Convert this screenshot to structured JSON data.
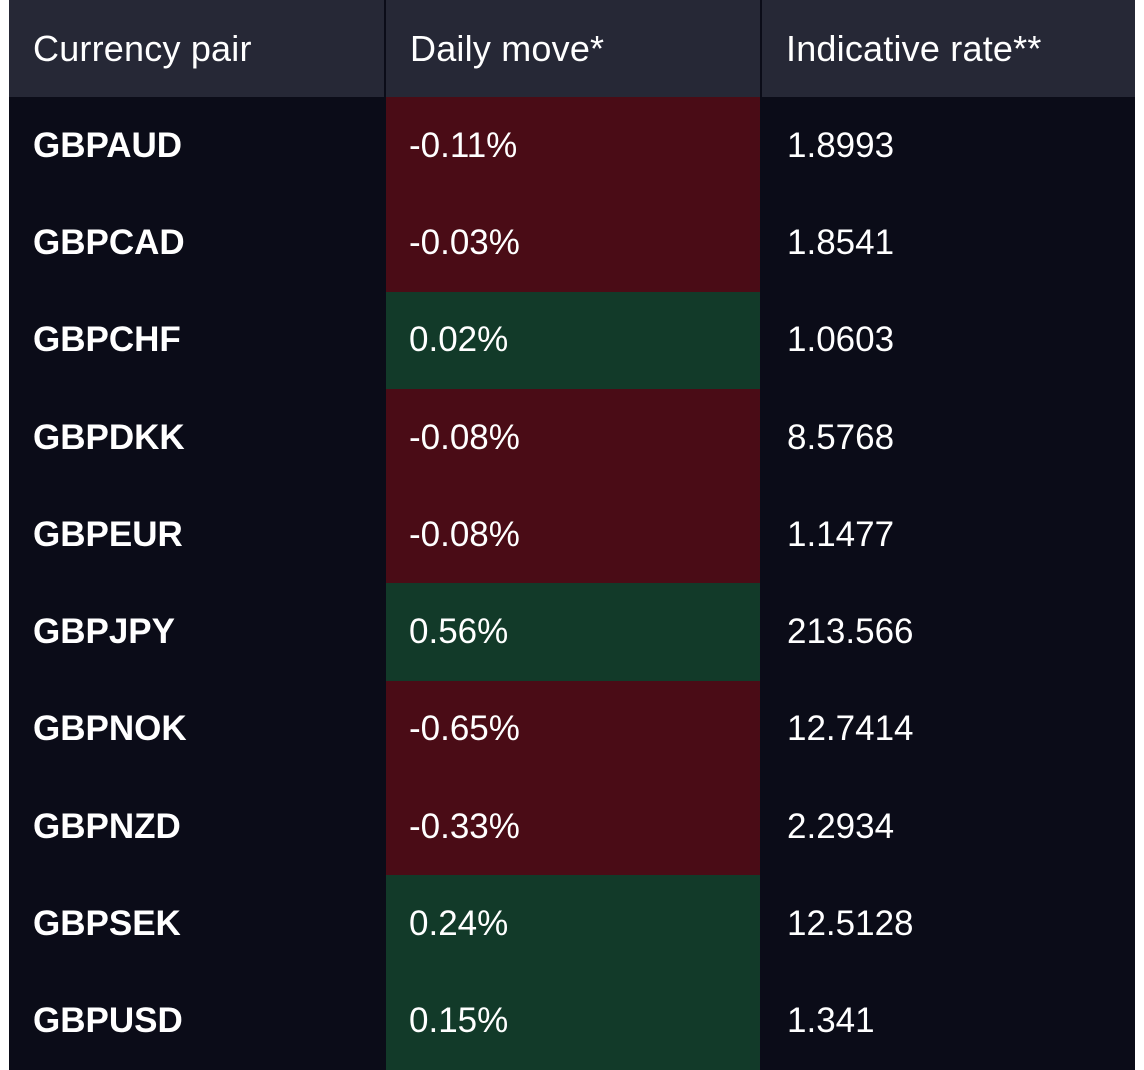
{
  "table": {
    "headers": [
      "Currency pair",
      "Daily move*",
      "Indicative rate**"
    ],
    "colors": {
      "background": "#0b0c18",
      "header_background": "#262836",
      "negative": "#4a0c16",
      "positive": "#123a29",
      "text": "#ffffff"
    },
    "rows": [
      {
        "pair": "GBPAUD",
        "move": "-0.11%",
        "move_value": -0.11,
        "rate": "1.8993"
      },
      {
        "pair": "GBPCAD",
        "move": "-0.03%",
        "move_value": -0.03,
        "rate": "1.8541"
      },
      {
        "pair": "GBPCHF",
        "move": "0.02%",
        "move_value": 0.02,
        "rate": "1.0603"
      },
      {
        "pair": "GBPDKK",
        "move": "-0.08%",
        "move_value": -0.08,
        "rate": "8.5768"
      },
      {
        "pair": "GBPEUR",
        "move": "-0.08%",
        "move_value": -0.08,
        "rate": "1.1477"
      },
      {
        "pair": "GBPJPY",
        "move": "0.56%",
        "move_value": 0.56,
        "rate": "213.566"
      },
      {
        "pair": "GBPNOK",
        "move": "-0.65%",
        "move_value": -0.65,
        "rate": "12.7414"
      },
      {
        "pair": "GBPNZD",
        "move": "-0.33%",
        "move_value": -0.33,
        "rate": "2.2934"
      },
      {
        "pair": "GBPSEK",
        "move": "0.24%",
        "move_value": 0.24,
        "rate": "12.5128"
      },
      {
        "pair": "GBPUSD",
        "move": "0.15%",
        "move_value": 0.15,
        "rate": "1.341"
      }
    ]
  }
}
